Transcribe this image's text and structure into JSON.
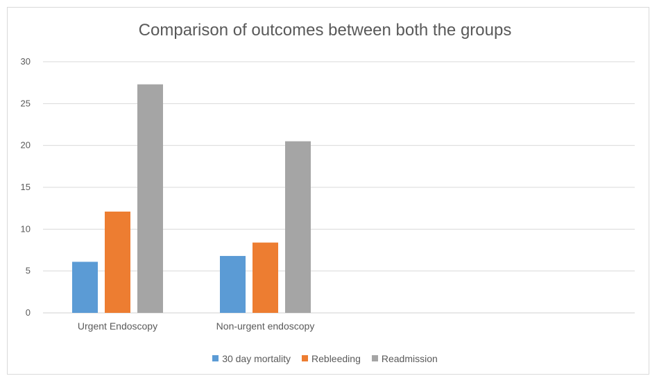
{
  "chart_data": {
    "type": "bar",
    "title": "Comparison of outcomes between both the groups",
    "categories": [
      "Urgent Endoscopy",
      "Non-urgent endoscopy"
    ],
    "series": [
      {
        "name": "30 day mortality",
        "values": [
          6.1,
          6.8
        ],
        "color": "#5b9bd5"
      },
      {
        "name": "Rebleeding",
        "values": [
          12.1,
          8.4
        ],
        "color": "#ed7d31"
      },
      {
        "name": "Readmission",
        "values": [
          27.3,
          20.5
        ],
        "color": "#a5a5a5"
      }
    ],
    "yticks": [
      "0",
      "5",
      "10",
      "15",
      "20",
      "25",
      "30"
    ],
    "ylim": [
      0,
      30
    ],
    "grid": true,
    "legend_position": "bottom"
  }
}
